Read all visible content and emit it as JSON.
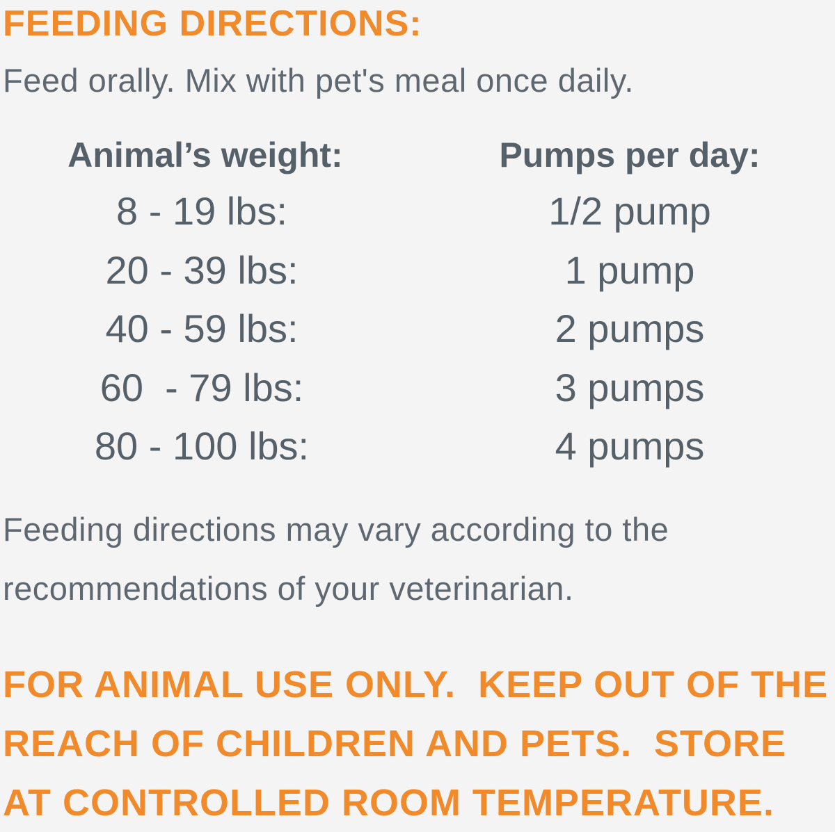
{
  "heading": "FEEDING DIRECTIONS:",
  "intro": "Feed orally. Mix with pet's meal once daily.",
  "table": {
    "headers": [
      "Animal’s weight:",
      "Pumps per day:"
    ],
    "rows": [
      [
        "8 - 19 lbs:",
        "1/2 pump"
      ],
      [
        "20 - 39 lbs:",
        "1 pump"
      ],
      [
        "40 - 59 lbs:",
        "2 pumps"
      ],
      [
        "60  - 79 lbs:",
        "3 pumps"
      ],
      [
        "80 - 100 lbs:",
        "4 pumps"
      ]
    ]
  },
  "note": [
    "Feeding directions may vary according to the",
    "recommendations of your veterinarian."
  ],
  "warning": [
    "FOR ANIMAL USE ONLY.  KEEP OUT OF THE",
    "REACH OF CHILDREN AND PETS.  STORE",
    "AT CONTROLLED ROOM TEMPERATURE."
  ]
}
